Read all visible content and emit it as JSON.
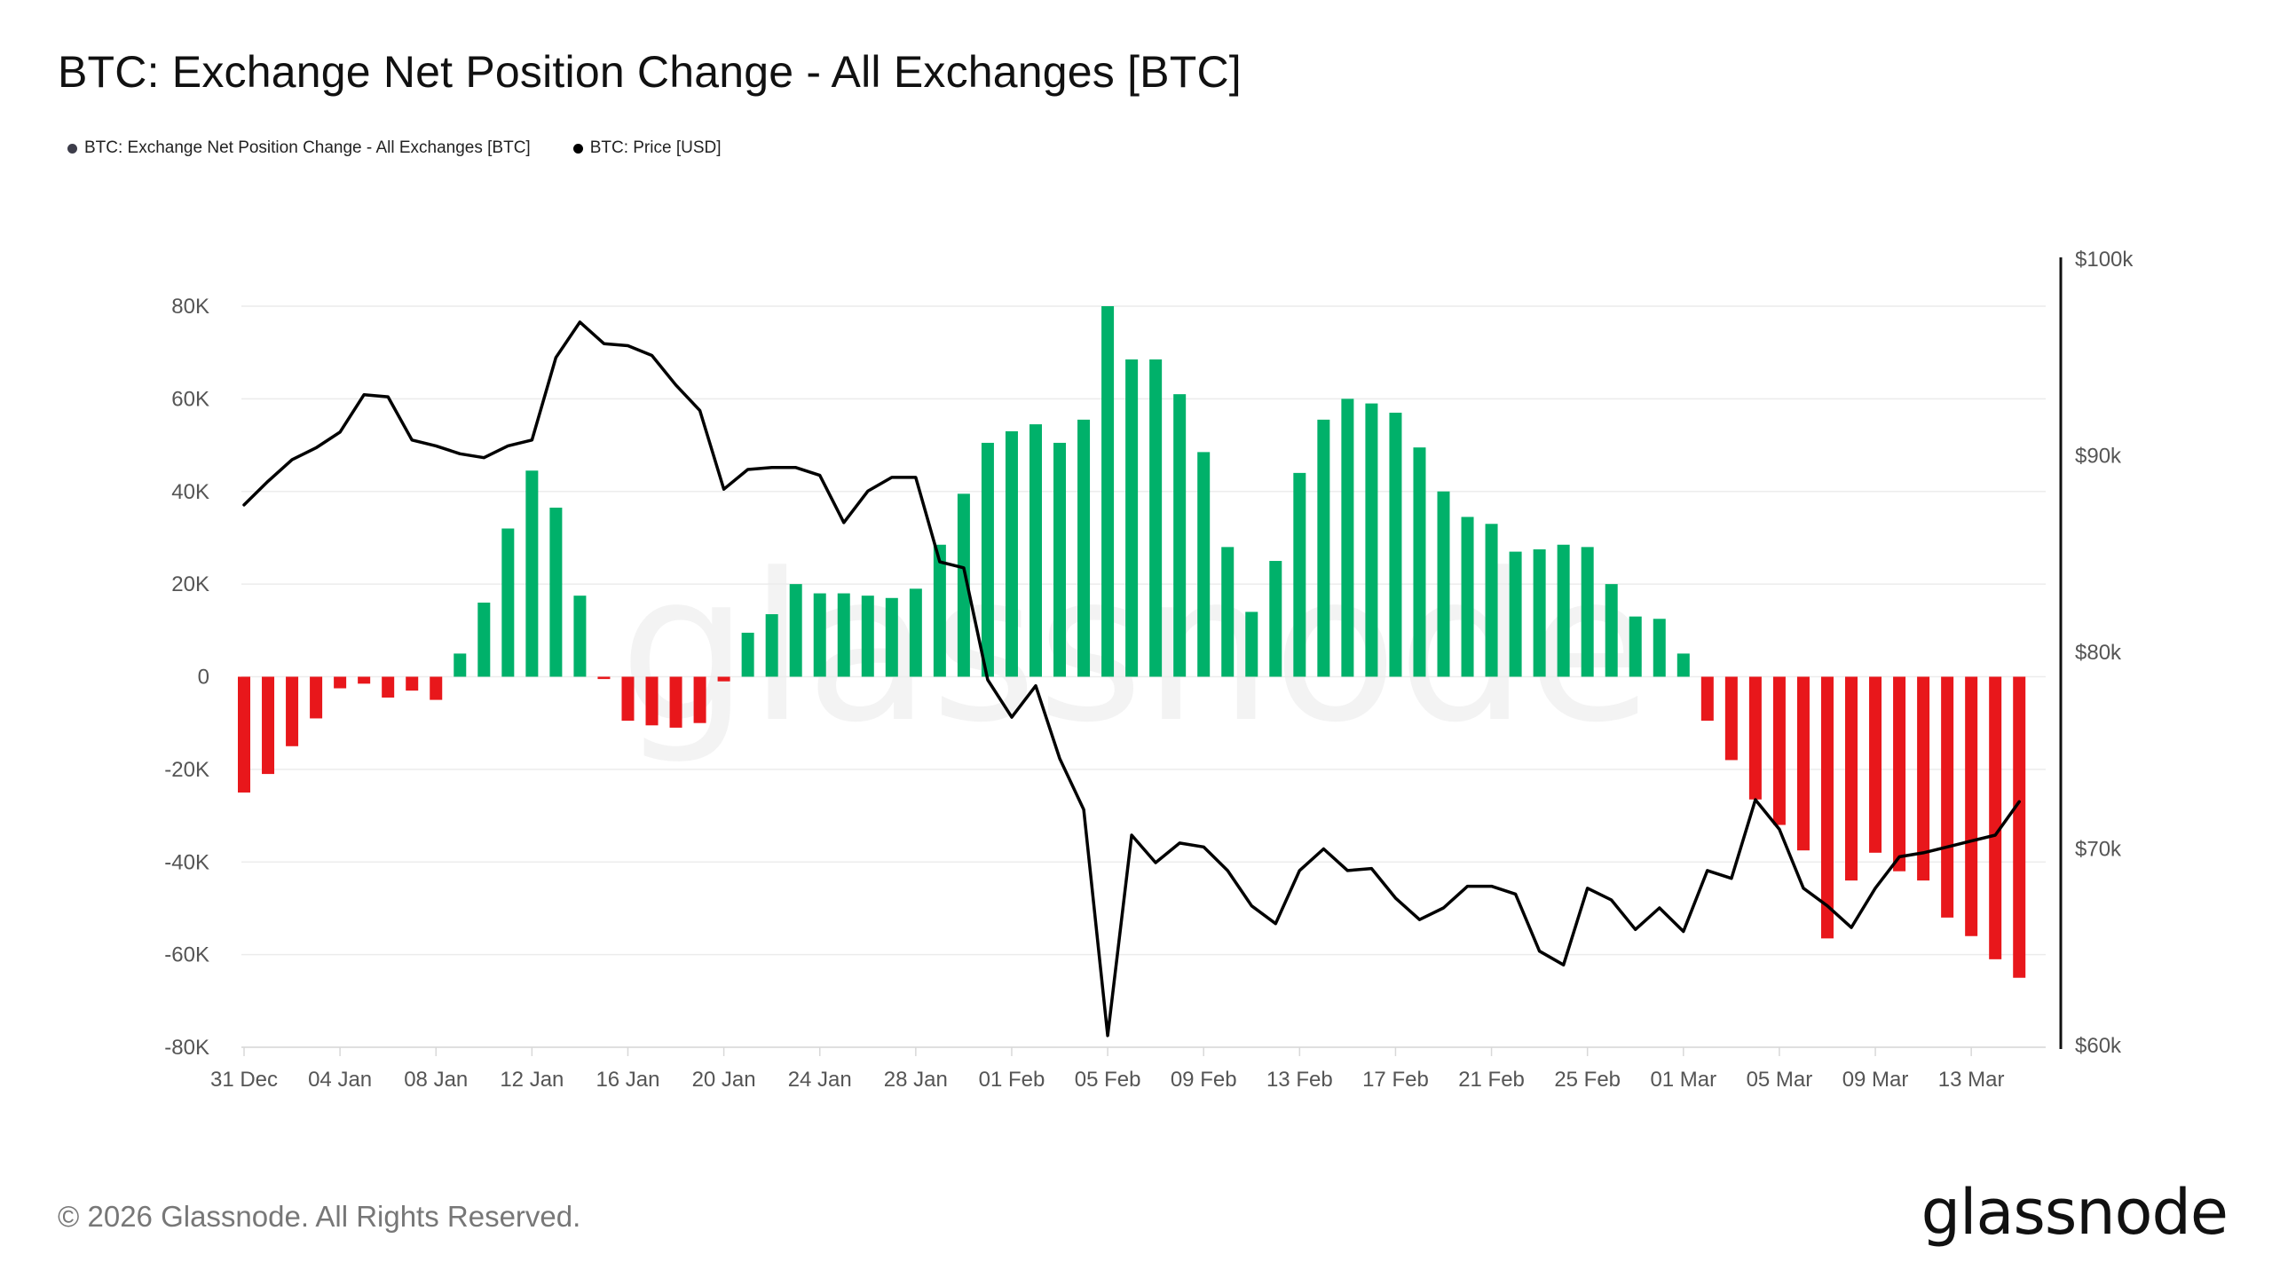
{
  "chart_data": {
    "type": "bar",
    "title": "BTC: Exchange Net Position Change - All Exchanges [BTC]",
    "legend": [
      {
        "name": "BTC: Exchange Net Position Change - All Exchanges [BTC]",
        "color": "#3d3d4a"
      },
      {
        "name": "BTC: Price [USD]",
        "color": "#000000"
      }
    ],
    "x_start": "2025-12-31",
    "x_end": "2026-03-15",
    "x_tick_labels": [
      "31 Dec",
      "04 Jan",
      "08 Jan",
      "12 Jan",
      "16 Jan",
      "20 Jan",
      "24 Jan",
      "28 Jan",
      "01 Feb",
      "05 Feb",
      "09 Feb",
      "13 Feb",
      "17 Feb",
      "21 Feb",
      "25 Feb",
      "01 Mar",
      "05 Mar",
      "09 Mar",
      "13 Mar"
    ],
    "y_left": {
      "ticks": [
        80000,
        60000,
        40000,
        20000,
        0,
        -20000,
        -40000,
        -60000,
        -80000
      ],
      "tick_labels": [
        "80K",
        "60K",
        "40K",
        "20K",
        "0",
        "-20K",
        "-40K",
        "-60K",
        "-80K"
      ],
      "ylim": [
        -80000,
        80000
      ]
    },
    "y_right": {
      "ticks": [
        100000,
        90000,
        80000,
        70000,
        60000
      ],
      "tick_labels": [
        "$100k",
        "$90k",
        "$80k",
        "$70k",
        "$60k"
      ],
      "ylim": [
        60000,
        100000
      ]
    },
    "positive_color": "#00b16a",
    "negative_color": "#e8171b",
    "price_color": "#000000",
    "series": [
      {
        "name": "BTC: Exchange Net Position Change - All Exchanges [BTC]",
        "values": [
          -25000,
          -21000,
          -15000,
          -9000,
          -2500,
          -1500,
          -4500,
          -3000,
          -5000,
          5000,
          16000,
          32000,
          44500,
          36500,
          17500,
          -500,
          -9500,
          -10500,
          -11000,
          -10000,
          -1000,
          9500,
          13500,
          20000,
          18000,
          18000,
          17500,
          17000,
          19000,
          28500,
          39500,
          50500,
          53000,
          54500,
          50500,
          55500,
          80000,
          68500,
          68500,
          61000,
          48500,
          28000,
          14000,
          25000,
          44000,
          55500,
          60000,
          59000,
          57000,
          49500,
          40000,
          34500,
          33000,
          27000,
          27500,
          28500,
          28000,
          20000,
          13000,
          12500,
          5000,
          -9500,
          -18000,
          -26500,
          -32000,
          -37500,
          -56500,
          -44000,
          -38000,
          -42000,
          -44000,
          -52000,
          -56000,
          -61000,
          -65000
        ]
      },
      {
        "name": "BTC: Price [USD]",
        "values": [
          87500,
          88700,
          89800,
          90400,
          91200,
          93100,
          93000,
          90800,
          90500,
          90100,
          89900,
          90500,
          90800,
          95000,
          96800,
          95700,
          95600,
          95100,
          93600,
          92300,
          88300,
          89300,
          89400,
          89400,
          89000,
          86600,
          88200,
          88900,
          88900,
          84600,
          84300,
          78600,
          76700,
          78300,
          74600,
          72000,
          60500,
          70700,
          69300,
          70300,
          70100,
          68900,
          67100,
          66200,
          68900,
          70000,
          68900,
          69000,
          67500,
          66400,
          67000,
          68100,
          68100,
          67700,
          64800,
          64100,
          68000,
          67400,
          65900,
          67000,
          65800,
          68900,
          68500,
          72500,
          71000,
          68000,
          67100,
          66000,
          68000,
          69600,
          69800,
          70100,
          70400,
          70700,
          72400
        ]
      }
    ],
    "grid": true
  },
  "footer": {
    "copyright": "© 2026 Glassnode. All Rights Reserved.",
    "logo": "glassnode"
  },
  "watermark": "glassnode"
}
